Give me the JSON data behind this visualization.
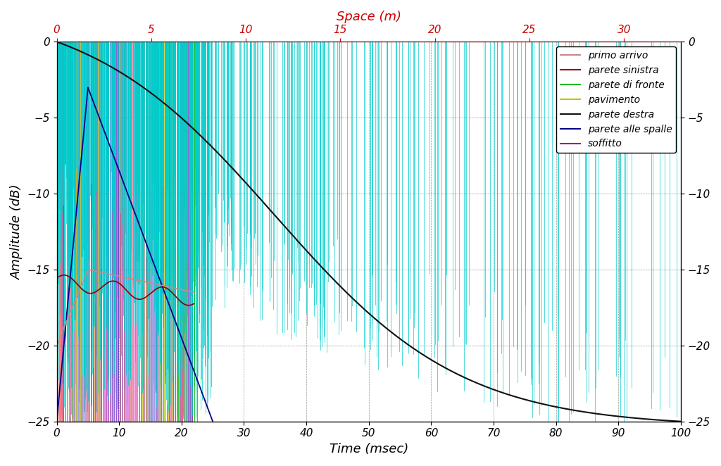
{
  "top_label": "Space (m)",
  "xlabel": "Time (msec)",
  "ylabel": "Amplitude (dB)",
  "time_xlim": [
    0,
    100
  ],
  "db_ylim": [
    -25,
    0
  ],
  "top_axis_color": "#cc0000",
  "background": "#ffffff",
  "yticks": [
    0,
    -5,
    -10,
    -15,
    -20,
    -25
  ],
  "xticks_time": [
    0,
    10,
    20,
    30,
    40,
    50,
    60,
    70,
    80,
    90,
    100
  ],
  "space_ticks": [
    0,
    5,
    10,
    15,
    20,
    25,
    30
  ],
  "speed_of_sound_mps": 330,
  "legend": [
    {
      "label": "primo arrivo",
      "color": "#cc8888"
    },
    {
      "label": "parete sinistra",
      "color": "#8b0000"
    },
    {
      "label": "parete di fronte",
      "color": "#22bb22"
    },
    {
      "label": "pavimento",
      "color": "#ccbb00"
    },
    {
      "label": "parete destra",
      "color": "#111111"
    },
    {
      "label": "parete alle spalle",
      "color": "#00008b"
    },
    {
      "label": "soffitto",
      "color": "#991199"
    }
  ]
}
